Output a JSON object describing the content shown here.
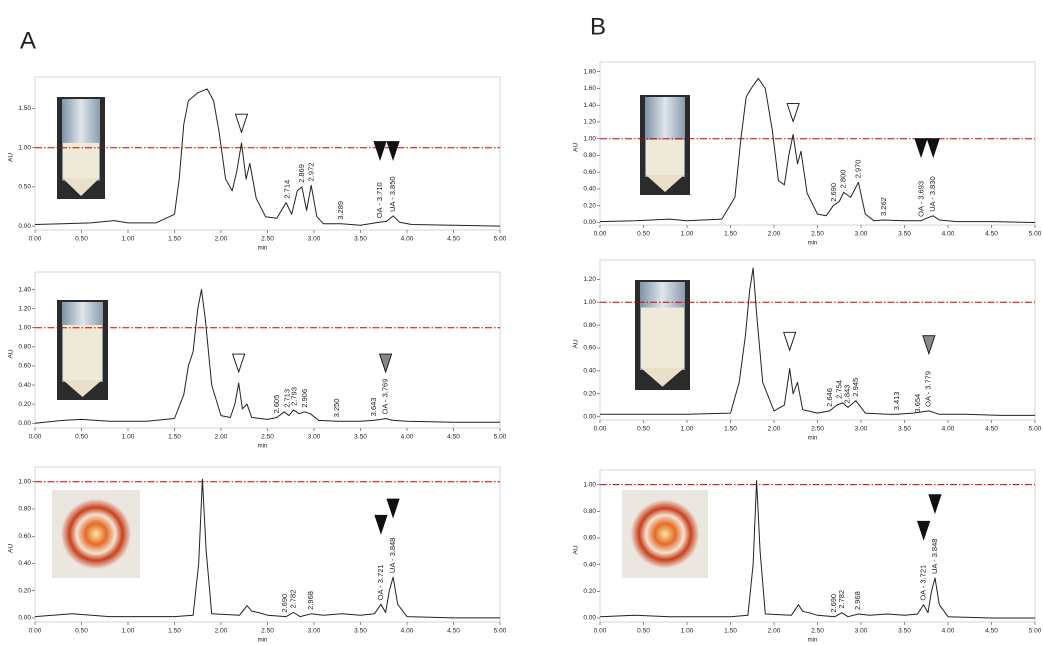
{
  "panels": [
    "A",
    "B"
  ],
  "chart_data": [
    {
      "type": "line",
      "color": "#222",
      "xlim": [
        0,
        5
      ],
      "ylim": [
        -0.05,
        1.8
      ],
      "x_label": "min",
      "y_label": "AU",
      "threshold": 1.0,
      "threshold_color": "#cc0000",
      "xticks": [
        {
          "value": 0,
          "label": "0.00"
        },
        {
          "value": 0.5,
          "label": "0.50"
        },
        {
          "value": 1,
          "label": "1.00"
        },
        {
          "value": 1.5,
          "label": "1.50"
        },
        {
          "value": 2,
          "label": "2.00"
        },
        {
          "value": 2.5,
          "label": "2.50"
        },
        {
          "value": 3,
          "label": "3.00"
        },
        {
          "value": 3.5,
          "label": "3.50"
        },
        {
          "value": 4,
          "label": "4.00"
        },
        {
          "value": 4.5,
          "label": "4.50"
        },
        {
          "value": 5,
          "label": "5.00"
        }
      ],
      "yticks": [
        {
          "value": 0,
          "label": "0.00"
        },
        {
          "value": 0.5,
          "label": "0.50"
        },
        {
          "value": 1,
          "label": "1.00"
        },
        {
          "value": 1.5,
          "label": "1.50"
        }
      ],
      "x": [
        0,
        0.3,
        0.6,
        0.85,
        1.0,
        1.3,
        1.5,
        1.55,
        1.6,
        1.65,
        1.75,
        1.85,
        1.92,
        1.98,
        2.05,
        2.12,
        2.17,
        2.22,
        2.27,
        2.31,
        2.38,
        2.48,
        2.6,
        2.7,
        2.76,
        2.82,
        2.87,
        2.92,
        2.97,
        3.03,
        3.1,
        3.29,
        3.5,
        3.7,
        3.78,
        3.85,
        3.92,
        4.05,
        4.5,
        5.0
      ],
      "values": [
        0.02,
        0.03,
        0.04,
        0.07,
        0.04,
        0.04,
        0.15,
        0.6,
        1.3,
        1.6,
        1.7,
        1.75,
        1.6,
        1.2,
        0.6,
        0.45,
        0.7,
        1.06,
        0.6,
        0.8,
        0.35,
        0.12,
        0.1,
        0.3,
        0.15,
        0.45,
        0.5,
        0.2,
        0.52,
        0.12,
        0.03,
        0.03,
        0.01,
        0.05,
        0.06,
        0.13,
        0.05,
        0.02,
        0.01,
        0.0
      ],
      "peak_labels": [
        "2.714",
        "2.869",
        "2.972",
        "3.289",
        "OA - 3.710",
        "UA - 3.850"
      ],
      "peak_x": [
        2.714,
        2.869,
        2.972,
        3.289,
        3.71,
        3.85
      ],
      "markers": [
        {
          "x": 2.22,
          "y": 1.3,
          "color": "#ffffff"
        },
        {
          "x": 3.71,
          "y": 0.95,
          "color": "#111111"
        },
        {
          "x": 3.85,
          "y": 0.95,
          "color": "#111111"
        }
      ]
    },
    {
      "type": "line",
      "color": "#222",
      "xlim": [
        0,
        5
      ],
      "ylim": [
        -0.05,
        1.5
      ],
      "x_label": "min",
      "y_label": "AU",
      "threshold": 1.0,
      "threshold_color": "#cc0000",
      "xticks": [
        {
          "value": 0,
          "label": "0.00"
        },
        {
          "value": 0.5,
          "label": "0.50"
        },
        {
          "value": 1,
          "label": "1.00"
        },
        {
          "value": 1.5,
          "label": "1.50"
        },
        {
          "value": 2,
          "label": "2.00"
        },
        {
          "value": 2.5,
          "label": "2.50"
        },
        {
          "value": 3,
          "label": "3.00"
        },
        {
          "value": 3.5,
          "label": "3.50"
        },
        {
          "value": 4,
          "label": "4.00"
        },
        {
          "value": 4.5,
          "label": "4.50"
        },
        {
          "value": 5,
          "label": "5.00"
        }
      ],
      "yticks": [
        {
          "value": 0,
          "label": "0.00"
        },
        {
          "value": 0.2,
          "label": "0.20"
        },
        {
          "value": 0.4,
          "label": "0.40"
        },
        {
          "value": 0.6,
          "label": "0.60"
        },
        {
          "value": 0.8,
          "label": "0.80"
        },
        {
          "value": 1,
          "label": "1.00"
        },
        {
          "value": 1.2,
          "label": "1.20"
        },
        {
          "value": 1.4,
          "label": "1.40"
        }
      ],
      "x": [
        0,
        0.3,
        0.5,
        0.8,
        1.2,
        1.5,
        1.6,
        1.65,
        1.7,
        1.75,
        1.79,
        1.83,
        1.9,
        2.0,
        2.1,
        2.15,
        2.19,
        2.23,
        2.28,
        2.33,
        2.5,
        2.6,
        2.68,
        2.73,
        2.78,
        2.84,
        2.9,
        2.96,
        3.05,
        3.25,
        3.5,
        3.64,
        3.72,
        3.77,
        3.85,
        4.0,
        4.5,
        5.0
      ],
      "values": [
        0.0,
        0.03,
        0.04,
        0.02,
        0.02,
        0.05,
        0.3,
        0.6,
        0.75,
        1.2,
        1.4,
        1.1,
        0.4,
        0.08,
        0.06,
        0.2,
        0.42,
        0.15,
        0.2,
        0.06,
        0.04,
        0.06,
        0.12,
        0.08,
        0.14,
        0.1,
        0.12,
        0.1,
        0.03,
        0.02,
        0.02,
        0.03,
        0.04,
        0.05,
        0.03,
        0.02,
        0.01,
        0.01
      ],
      "peak_labels": [
        "2.605",
        "2.713",
        "2.793",
        "2.906",
        "3.250",
        "3.643",
        "OA - 3.769"
      ],
      "peak_x": [
        2.605,
        2.713,
        2.793,
        2.906,
        3.25,
        3.643,
        3.769
      ],
      "markers": [
        {
          "x": 2.19,
          "y": 0.62,
          "color": "#ffffff"
        },
        {
          "x": 3.77,
          "y": 0.62,
          "color": "#888888"
        }
      ]
    },
    {
      "type": "line",
      "color": "#222",
      "xlim": [
        0,
        5
      ],
      "ylim": [
        -0.03,
        1.05
      ],
      "x_label": "min",
      "y_label": "AU",
      "threshold": 1.0,
      "threshold_color": "#cc0000",
      "xticks": [
        {
          "value": 0,
          "label": "0.00"
        },
        {
          "value": 0.5,
          "label": "0.50"
        },
        {
          "value": 1,
          "label": "1.00"
        },
        {
          "value": 1.5,
          "label": "1.50"
        },
        {
          "value": 2,
          "label": "2.00"
        },
        {
          "value": 2.5,
          "label": "2.50"
        },
        {
          "value": 3,
          "label": "3.00"
        },
        {
          "value": 3.5,
          "label": "3.50"
        },
        {
          "value": 4,
          "label": "4.00"
        },
        {
          "value": 4.5,
          "label": "4.50"
        },
        {
          "value": 5,
          "label": "5.00"
        }
      ],
      "yticks": [
        {
          "value": 0,
          "label": "0.00"
        },
        {
          "value": 0.2,
          "label": "0.20"
        },
        {
          "value": 0.4,
          "label": "0.40"
        },
        {
          "value": 0.6,
          "label": "0.60"
        },
        {
          "value": 0.8,
          "label": "0.80"
        },
        {
          "value": 1,
          "label": "1.00"
        }
      ],
      "x": [
        0,
        0.4,
        0.8,
        1.5,
        1.7,
        1.76,
        1.8,
        1.84,
        1.9,
        2.2,
        2.28,
        2.33,
        2.4,
        2.5,
        2.7,
        2.78,
        2.85,
        2.97,
        3.1,
        3.3,
        3.5,
        3.65,
        3.72,
        3.77,
        3.81,
        3.85,
        3.9,
        4.0,
        4.5,
        5.0
      ],
      "values": [
        0.01,
        0.03,
        0.01,
        0.01,
        0.02,
        0.4,
        1.02,
        0.5,
        0.03,
        0.02,
        0.09,
        0.05,
        0.04,
        0.02,
        0.01,
        0.04,
        0.01,
        0.03,
        0.02,
        0.03,
        0.02,
        0.03,
        0.1,
        0.04,
        0.2,
        0.3,
        0.1,
        0.01,
        0.0,
        0.0
      ],
      "peak_labels": [
        "2.690",
        "2.782",
        "2.968",
        "OA - 3.721",
        "UA - 3.848"
      ],
      "peak_x": [
        2.69,
        2.782,
        2.968,
        3.721,
        3.848
      ],
      "markers": [
        {
          "x": 3.72,
          "y": 0.68,
          "color": "#111111"
        },
        {
          "x": 3.85,
          "y": 0.8,
          "color": "#111111"
        }
      ]
    },
    {
      "type": "line",
      "color": "#222",
      "xlim": [
        0,
        5
      ],
      "ylim": [
        -0.03,
        1.82
      ],
      "x_label": "min",
      "y_label": "AU",
      "threshold": 1.0,
      "threshold_color": "#cc0000",
      "xticks": [
        {
          "value": 0,
          "label": "0.00"
        },
        {
          "value": 0.5,
          "label": "0.50"
        },
        {
          "value": 1,
          "label": "1.00"
        },
        {
          "value": 1.5,
          "label": "1.50"
        },
        {
          "value": 2,
          "label": "2.00"
        },
        {
          "value": 2.5,
          "label": "2.50"
        },
        {
          "value": 3,
          "label": "3.00"
        },
        {
          "value": 3.5,
          "label": "3.50"
        },
        {
          "value": 4,
          "label": "4.00"
        },
        {
          "value": 4.5,
          "label": "4.50"
        },
        {
          "value": 5,
          "label": "5.00"
        }
      ],
      "yticks": [
        {
          "value": 0,
          "label": "0.00"
        },
        {
          "value": 0.2,
          "label": "0.20"
        },
        {
          "value": 0.4,
          "label": "0.40"
        },
        {
          "value": 0.6,
          "label": "0.60"
        },
        {
          "value": 0.8,
          "label": "0.80"
        },
        {
          "value": 1,
          "label": "1.00"
        },
        {
          "value": 1.2,
          "label": "1.20"
        },
        {
          "value": 1.4,
          "label": "1.40"
        },
        {
          "value": 1.6,
          "label": "1.60"
        },
        {
          "value": 1.8,
          "label": "1.80"
        }
      ],
      "x": [
        0,
        0.4,
        0.8,
        1.0,
        1.4,
        1.55,
        1.62,
        1.68,
        1.75,
        1.82,
        1.9,
        1.98,
        2.05,
        2.12,
        2.17,
        2.22,
        2.27,
        2.31,
        2.38,
        2.5,
        2.6,
        2.68,
        2.75,
        2.8,
        2.88,
        2.97,
        3.05,
        3.15,
        3.26,
        3.5,
        3.69,
        3.75,
        3.83,
        3.9,
        4.1,
        4.5,
        5.0
      ],
      "values": [
        0.01,
        0.02,
        0.04,
        0.02,
        0.04,
        0.3,
        1.0,
        1.5,
        1.62,
        1.72,
        1.6,
        1.1,
        0.5,
        0.45,
        0.8,
        1.05,
        0.7,
        0.85,
        0.35,
        0.1,
        0.08,
        0.2,
        0.25,
        0.36,
        0.3,
        0.48,
        0.1,
        0.02,
        0.03,
        0.02,
        0.02,
        0.05,
        0.08,
        0.03,
        0.01,
        0.01,
        0.0
      ],
      "peak_labels": [
        "2.690",
        "2.800",
        "2.970",
        "3.262",
        "OA - 3.693",
        "UA - 3.830"
      ],
      "peak_x": [
        2.69,
        2.8,
        2.97,
        3.262,
        3.693,
        3.83
      ],
      "markers": [
        {
          "x": 2.22,
          "y": 1.3,
          "color": "#ffffff"
        },
        {
          "x": 3.69,
          "y": 0.88,
          "color": "#111111"
        },
        {
          "x": 3.83,
          "y": 0.88,
          "color": "#111111"
        }
      ]
    },
    {
      "type": "line",
      "color": "#222",
      "xlim": [
        0,
        5
      ],
      "ylim": [
        -0.03,
        1.3
      ],
      "x_label": "min",
      "y_label": "AU",
      "threshold": 1.0,
      "threshold_color": "#cc0000",
      "xticks": [
        {
          "value": 0,
          "label": "0.00"
        },
        {
          "value": 0.5,
          "label": "0.50"
        },
        {
          "value": 1,
          "label": "1.00"
        },
        {
          "value": 1.5,
          "label": "1.50"
        },
        {
          "value": 2,
          "label": "2.00"
        },
        {
          "value": 2.5,
          "label": "2.50"
        },
        {
          "value": 3,
          "label": "3.00"
        },
        {
          "value": 3.5,
          "label": "3.50"
        },
        {
          "value": 4,
          "label": "4.00"
        },
        {
          "value": 4.5,
          "label": "4.50"
        },
        {
          "value": 5,
          "label": "5.00"
        }
      ],
      "yticks": [
        {
          "value": 0,
          "label": "0.00"
        },
        {
          "value": 0.2,
          "label": "0.20"
        },
        {
          "value": 0.4,
          "label": "0.40"
        },
        {
          "value": 0.6,
          "label": "0.60"
        },
        {
          "value": 0.8,
          "label": "0.80"
        },
        {
          "value": 1,
          "label": "1.00"
        },
        {
          "value": 1.2,
          "label": "1.20"
        }
      ],
      "x": [
        0,
        0.5,
        1.0,
        1.5,
        1.6,
        1.67,
        1.72,
        1.76,
        1.8,
        1.87,
        2.0,
        2.12,
        2.18,
        2.22,
        2.27,
        2.33,
        2.5,
        2.64,
        2.72,
        2.79,
        2.85,
        2.94,
        3.05,
        3.3,
        3.41,
        3.6,
        3.78,
        3.9,
        4.2,
        4.6,
        5.0
      ],
      "values": [
        0.02,
        0.02,
        0.02,
        0.03,
        0.3,
        0.7,
        1.1,
        1.3,
        0.9,
        0.3,
        0.05,
        0.1,
        0.42,
        0.2,
        0.3,
        0.06,
        0.03,
        0.05,
        0.1,
        0.12,
        0.08,
        0.14,
        0.03,
        0.02,
        0.02,
        0.03,
        0.05,
        0.02,
        0.02,
        0.01,
        0.01
      ],
      "peak_labels": [
        "2.646",
        "2.754",
        "2.843",
        "2.945",
        "3.413",
        "3.654",
        "OA - 3.779"
      ],
      "peak_x": [
        2.646,
        2.754,
        2.843,
        2.945,
        3.413,
        3.654,
        3.779
      ],
      "markers": [
        {
          "x": 2.18,
          "y": 0.65,
          "color": "#ffffff"
        },
        {
          "x": 3.78,
          "y": 0.62,
          "color": "#888888"
        }
      ]
    },
    {
      "type": "line",
      "color": "#222",
      "xlim": [
        0,
        5
      ],
      "ylim": [
        -0.03,
        1.05
      ],
      "x_label": "min",
      "y_label": "AU",
      "threshold": 1.0,
      "threshold_color": "#cc0000",
      "xticks": [
        {
          "value": 0,
          "label": "0.00"
        },
        {
          "value": 0.5,
          "label": "0.50"
        },
        {
          "value": 1,
          "label": "1.00"
        },
        {
          "value": 1.5,
          "label": "1.50"
        },
        {
          "value": 2,
          "label": "2.00"
        },
        {
          "value": 2.5,
          "label": "2.50"
        },
        {
          "value": 3,
          "label": "3.00"
        },
        {
          "value": 3.5,
          "label": "3.50"
        },
        {
          "value": 4,
          "label": "4.00"
        },
        {
          "value": 4.5,
          "label": "4.50"
        },
        {
          "value": 5,
          "label": "5.00"
        }
      ],
      "yticks": [
        {
          "value": 0,
          "label": "0.00"
        },
        {
          "value": 0.2,
          "label": "0.20"
        },
        {
          "value": 0.4,
          "label": "0.40"
        },
        {
          "value": 0.6,
          "label": "0.60"
        },
        {
          "value": 0.8,
          "label": "0.80"
        },
        {
          "value": 1,
          "label": "1.00"
        }
      ],
      "x": [
        0,
        0.4,
        0.8,
        1.5,
        1.7,
        1.76,
        1.8,
        1.84,
        1.9,
        2.2,
        2.28,
        2.33,
        2.4,
        2.5,
        2.7,
        2.78,
        2.85,
        2.97,
        3.1,
        3.3,
        3.5,
        3.65,
        3.72,
        3.77,
        3.81,
        3.85,
        3.9,
        4.0,
        4.5,
        5.0
      ],
      "values": [
        0.01,
        0.02,
        0.01,
        0.01,
        0.02,
        0.4,
        1.03,
        0.5,
        0.03,
        0.02,
        0.1,
        0.05,
        0.04,
        0.02,
        0.01,
        0.04,
        0.01,
        0.03,
        0.02,
        0.03,
        0.02,
        0.03,
        0.1,
        0.04,
        0.2,
        0.3,
        0.1,
        0.01,
        0.0,
        0.0
      ],
      "peak_labels": [
        "2.690",
        "2.782",
        "2.968",
        "OA - 3.721",
        "UA - 3.848"
      ],
      "peak_x": [
        2.69,
        2.782,
        2.968,
        3.721,
        3.848
      ],
      "markers": [
        {
          "x": 3.72,
          "y": 0.65,
          "color": "#111111"
        },
        {
          "x": 3.85,
          "y": 0.85,
          "color": "#111111"
        }
      ]
    }
  ]
}
